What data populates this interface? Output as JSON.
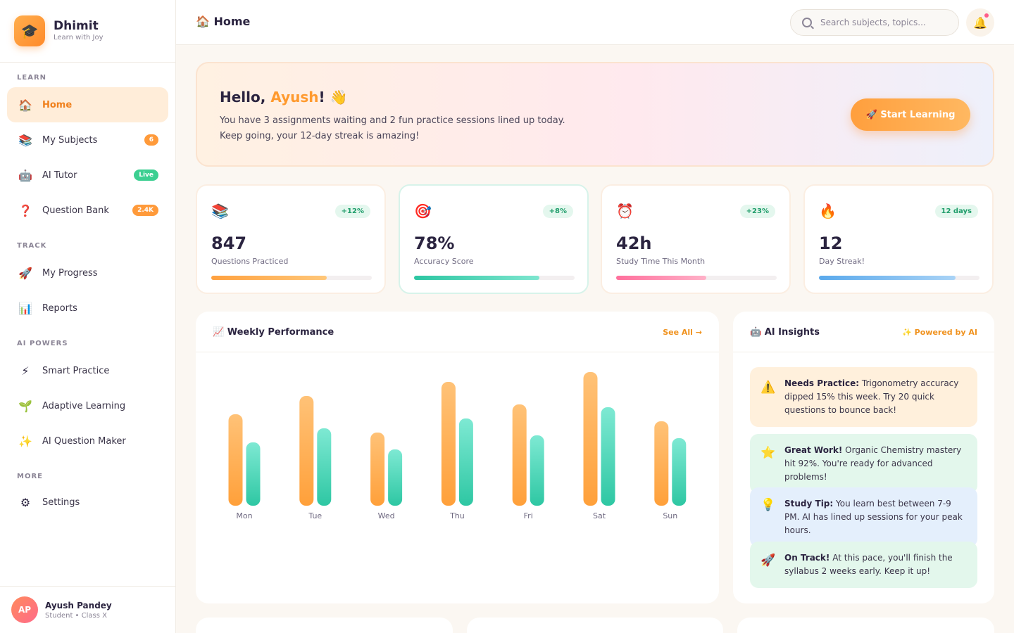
{
  "brand": {
    "name": "Dhimit",
    "tagline": "Learn with Joy",
    "logo_icon": "🎓"
  },
  "sidebar": {
    "sections": [
      "LEARN",
      "TRACK",
      "AI POWERS",
      "MORE"
    ],
    "items": [
      {
        "icon": "🏠",
        "label": "Home",
        "active": true
      },
      {
        "icon": "📚",
        "label": "My Subjects",
        "badge": "6",
        "badge_color": "#ff9a3a"
      },
      {
        "icon": "🤖",
        "label": "AI Tutor",
        "badge": "Live",
        "badge_color": "#3ccf91"
      },
      {
        "icon": "❓",
        "label": "Question Bank",
        "badge": "2.4K",
        "badge_color": "#ff9a3a"
      },
      {
        "icon": "🚀",
        "label": "My Progress"
      },
      {
        "icon": "📊",
        "label": "Reports"
      },
      {
        "icon": "⚡",
        "label": "Smart Practice"
      },
      {
        "icon": "🌱",
        "label": "Adaptive Learning"
      },
      {
        "icon": "✨",
        "label": "AI Question Maker"
      },
      {
        "icon": "⚙",
        "label": "Settings"
      }
    ]
  },
  "user": {
    "initials": "AP",
    "name": "Ayush Pandey",
    "role": "Student • Class X"
  },
  "topbar": {
    "title": "🏠 Home",
    "search_placeholder": "Search subjects, topics...",
    "bell_icon": "🔔"
  },
  "hero": {
    "greeting": "Hello, ",
    "name": "Ayush",
    "suffix": "! 👋",
    "message": "You have 3 assignments waiting and 2 fun practice sessions lined up today. Keep going, your 12-day streak is amazing!",
    "button": "🚀 Start Learning"
  },
  "stats": [
    {
      "icon": "📚",
      "chip": "+12%",
      "value": "847",
      "label": "Questions Practiced",
      "progress": 0.72,
      "colors": [
        "#ffa13f",
        "#ffc779"
      ]
    },
    {
      "icon": "🎯",
      "chip": "+8%",
      "value": "78%",
      "label": "Accuracy Score",
      "progress": 0.78,
      "colors": [
        "#2cc6a2",
        "#7ee6cf"
      ]
    },
    {
      "icon": "⏰",
      "chip": "+23%",
      "value": "42h",
      "label": "Study Time This Month",
      "progress": 0.56,
      "colors": [
        "#ff6f9c",
        "#ffb1c8"
      ]
    },
    {
      "icon": "🔥",
      "chip": "12 days",
      "value": "12",
      "label": "Day Streak!",
      "progress": 0.85,
      "colors": [
        "#5aa9ec",
        "#a9d3f6"
      ]
    }
  ],
  "performance": {
    "title": "📈 Weekly Performance",
    "link": "See All →"
  },
  "chart_data": {
    "type": "bar",
    "categories": [
      "Mon",
      "Tue",
      "Wed",
      "Thu",
      "Fri",
      "Sat",
      "Sun"
    ],
    "series": [
      {
        "values": [
          65,
          78,
          52,
          88,
          72,
          95,
          60
        ],
        "color": "#ffa53f"
      },
      {
        "values": [
          45,
          55,
          40,
          62,
          50,
          70,
          48
        ],
        "color": "#35cfa8"
      }
    ],
    "ylim": [
      0,
      100
    ],
    "grid": false,
    "legend": "none"
  },
  "insights": {
    "title": "🤖 AI Insights",
    "badge": "✨ Powered by AI",
    "items": [
      {
        "icon": "⚠️",
        "title": "Needs Practice:",
        "text": " Trigonometry accuracy dipped 15% this week. Try 20 quick questions to bounce back!",
        "bg": "#fff0dc"
      },
      {
        "icon": "⭐",
        "title": "Great Work!",
        "text": " Organic Chemistry mastery hit 92%. You're ready for advanced problems!",
        "bg": "#e3f7ec"
      },
      {
        "icon": "💡",
        "title": "Study Tip:",
        "text": " You learn best between 7-9 PM. AI has lined up sessions for your peak hours.",
        "bg": "#e4effc"
      },
      {
        "icon": "🚀",
        "title": "On Track!",
        "text": " At this pace, you'll finish the syllabus 2 weeks early. Keep it up!",
        "bg": "#e3f7ec"
      }
    ]
  }
}
